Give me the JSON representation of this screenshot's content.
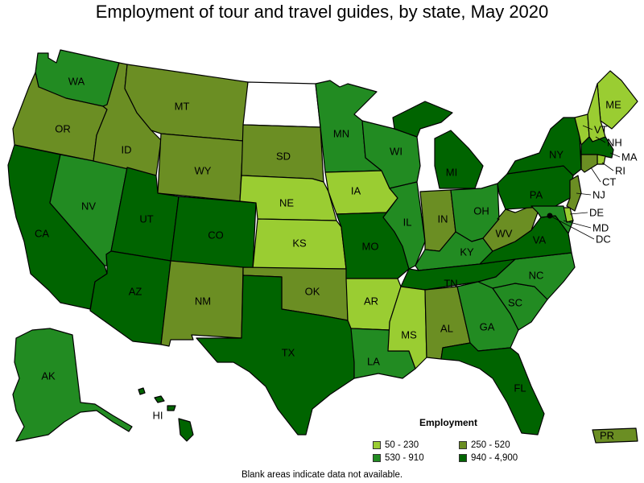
{
  "title": "Employment of tour and travel guides, by state, May 2020",
  "legend": {
    "title": "Employment",
    "bins": [
      {
        "label": "50 - 230",
        "color": "#9acd32"
      },
      {
        "label": "250 - 520",
        "color": "#6b8e23"
      },
      {
        "label": "530 - 910",
        "color": "#228b22"
      },
      {
        "label": "940 - 4,900",
        "color": "#006400"
      }
    ]
  },
  "no_data_color": "#ffffff",
  "footnote": "Blank areas indicate data not available.",
  "states": [
    {
      "abbr": "WA",
      "bin": 2
    },
    {
      "abbr": "OR",
      "bin": 1
    },
    {
      "abbr": "CA",
      "bin": 3
    },
    {
      "abbr": "NV",
      "bin": 2
    },
    {
      "abbr": "ID",
      "bin": 1
    },
    {
      "abbr": "MT",
      "bin": 1
    },
    {
      "abbr": "WY",
      "bin": 1
    },
    {
      "abbr": "UT",
      "bin": 3
    },
    {
      "abbr": "CO",
      "bin": 3
    },
    {
      "abbr": "AZ",
      "bin": 3
    },
    {
      "abbr": "NM",
      "bin": 1
    },
    {
      "abbr": "ND",
      "bin": null
    },
    {
      "abbr": "SD",
      "bin": 1
    },
    {
      "abbr": "NE",
      "bin": 0
    },
    {
      "abbr": "KS",
      "bin": 0
    },
    {
      "abbr": "OK",
      "bin": 1
    },
    {
      "abbr": "TX",
      "bin": 3
    },
    {
      "abbr": "MN",
      "bin": 2
    },
    {
      "abbr": "IA",
      "bin": 0
    },
    {
      "abbr": "MO",
      "bin": 3
    },
    {
      "abbr": "AR",
      "bin": 0
    },
    {
      "abbr": "LA",
      "bin": 2
    },
    {
      "abbr": "WI",
      "bin": 2
    },
    {
      "abbr": "IL",
      "bin": 2
    },
    {
      "abbr": "MI",
      "bin": 3
    },
    {
      "abbr": "IN",
      "bin": 1
    },
    {
      "abbr": "OH",
      "bin": 2
    },
    {
      "abbr": "KY",
      "bin": 2
    },
    {
      "abbr": "TN",
      "bin": 3
    },
    {
      "abbr": "MS",
      "bin": 0
    },
    {
      "abbr": "AL",
      "bin": 1
    },
    {
      "abbr": "GA",
      "bin": 2
    },
    {
      "abbr": "FL",
      "bin": 3
    },
    {
      "abbr": "SC",
      "bin": 2
    },
    {
      "abbr": "NC",
      "bin": 2
    },
    {
      "abbr": "VA",
      "bin": 3
    },
    {
      "abbr": "WV",
      "bin": 1
    },
    {
      "abbr": "PA",
      "bin": 3
    },
    {
      "abbr": "NY",
      "bin": 3
    },
    {
      "abbr": "ME",
      "bin": 0
    },
    {
      "abbr": "VT",
      "bin": 0
    },
    {
      "abbr": "NH",
      "bin": 0
    },
    {
      "abbr": "MA",
      "bin": 3
    },
    {
      "abbr": "RI",
      "bin": 0
    },
    {
      "abbr": "CT",
      "bin": 1
    },
    {
      "abbr": "NJ",
      "bin": 1
    },
    {
      "abbr": "DE",
      "bin": 0
    },
    {
      "abbr": "MD",
      "bin": 2
    },
    {
      "abbr": "DC",
      "bin": 3
    },
    {
      "abbr": "AK",
      "bin": 2
    },
    {
      "abbr": "HI",
      "bin": 3
    },
    {
      "abbr": "PR",
      "bin": 1
    }
  ]
}
